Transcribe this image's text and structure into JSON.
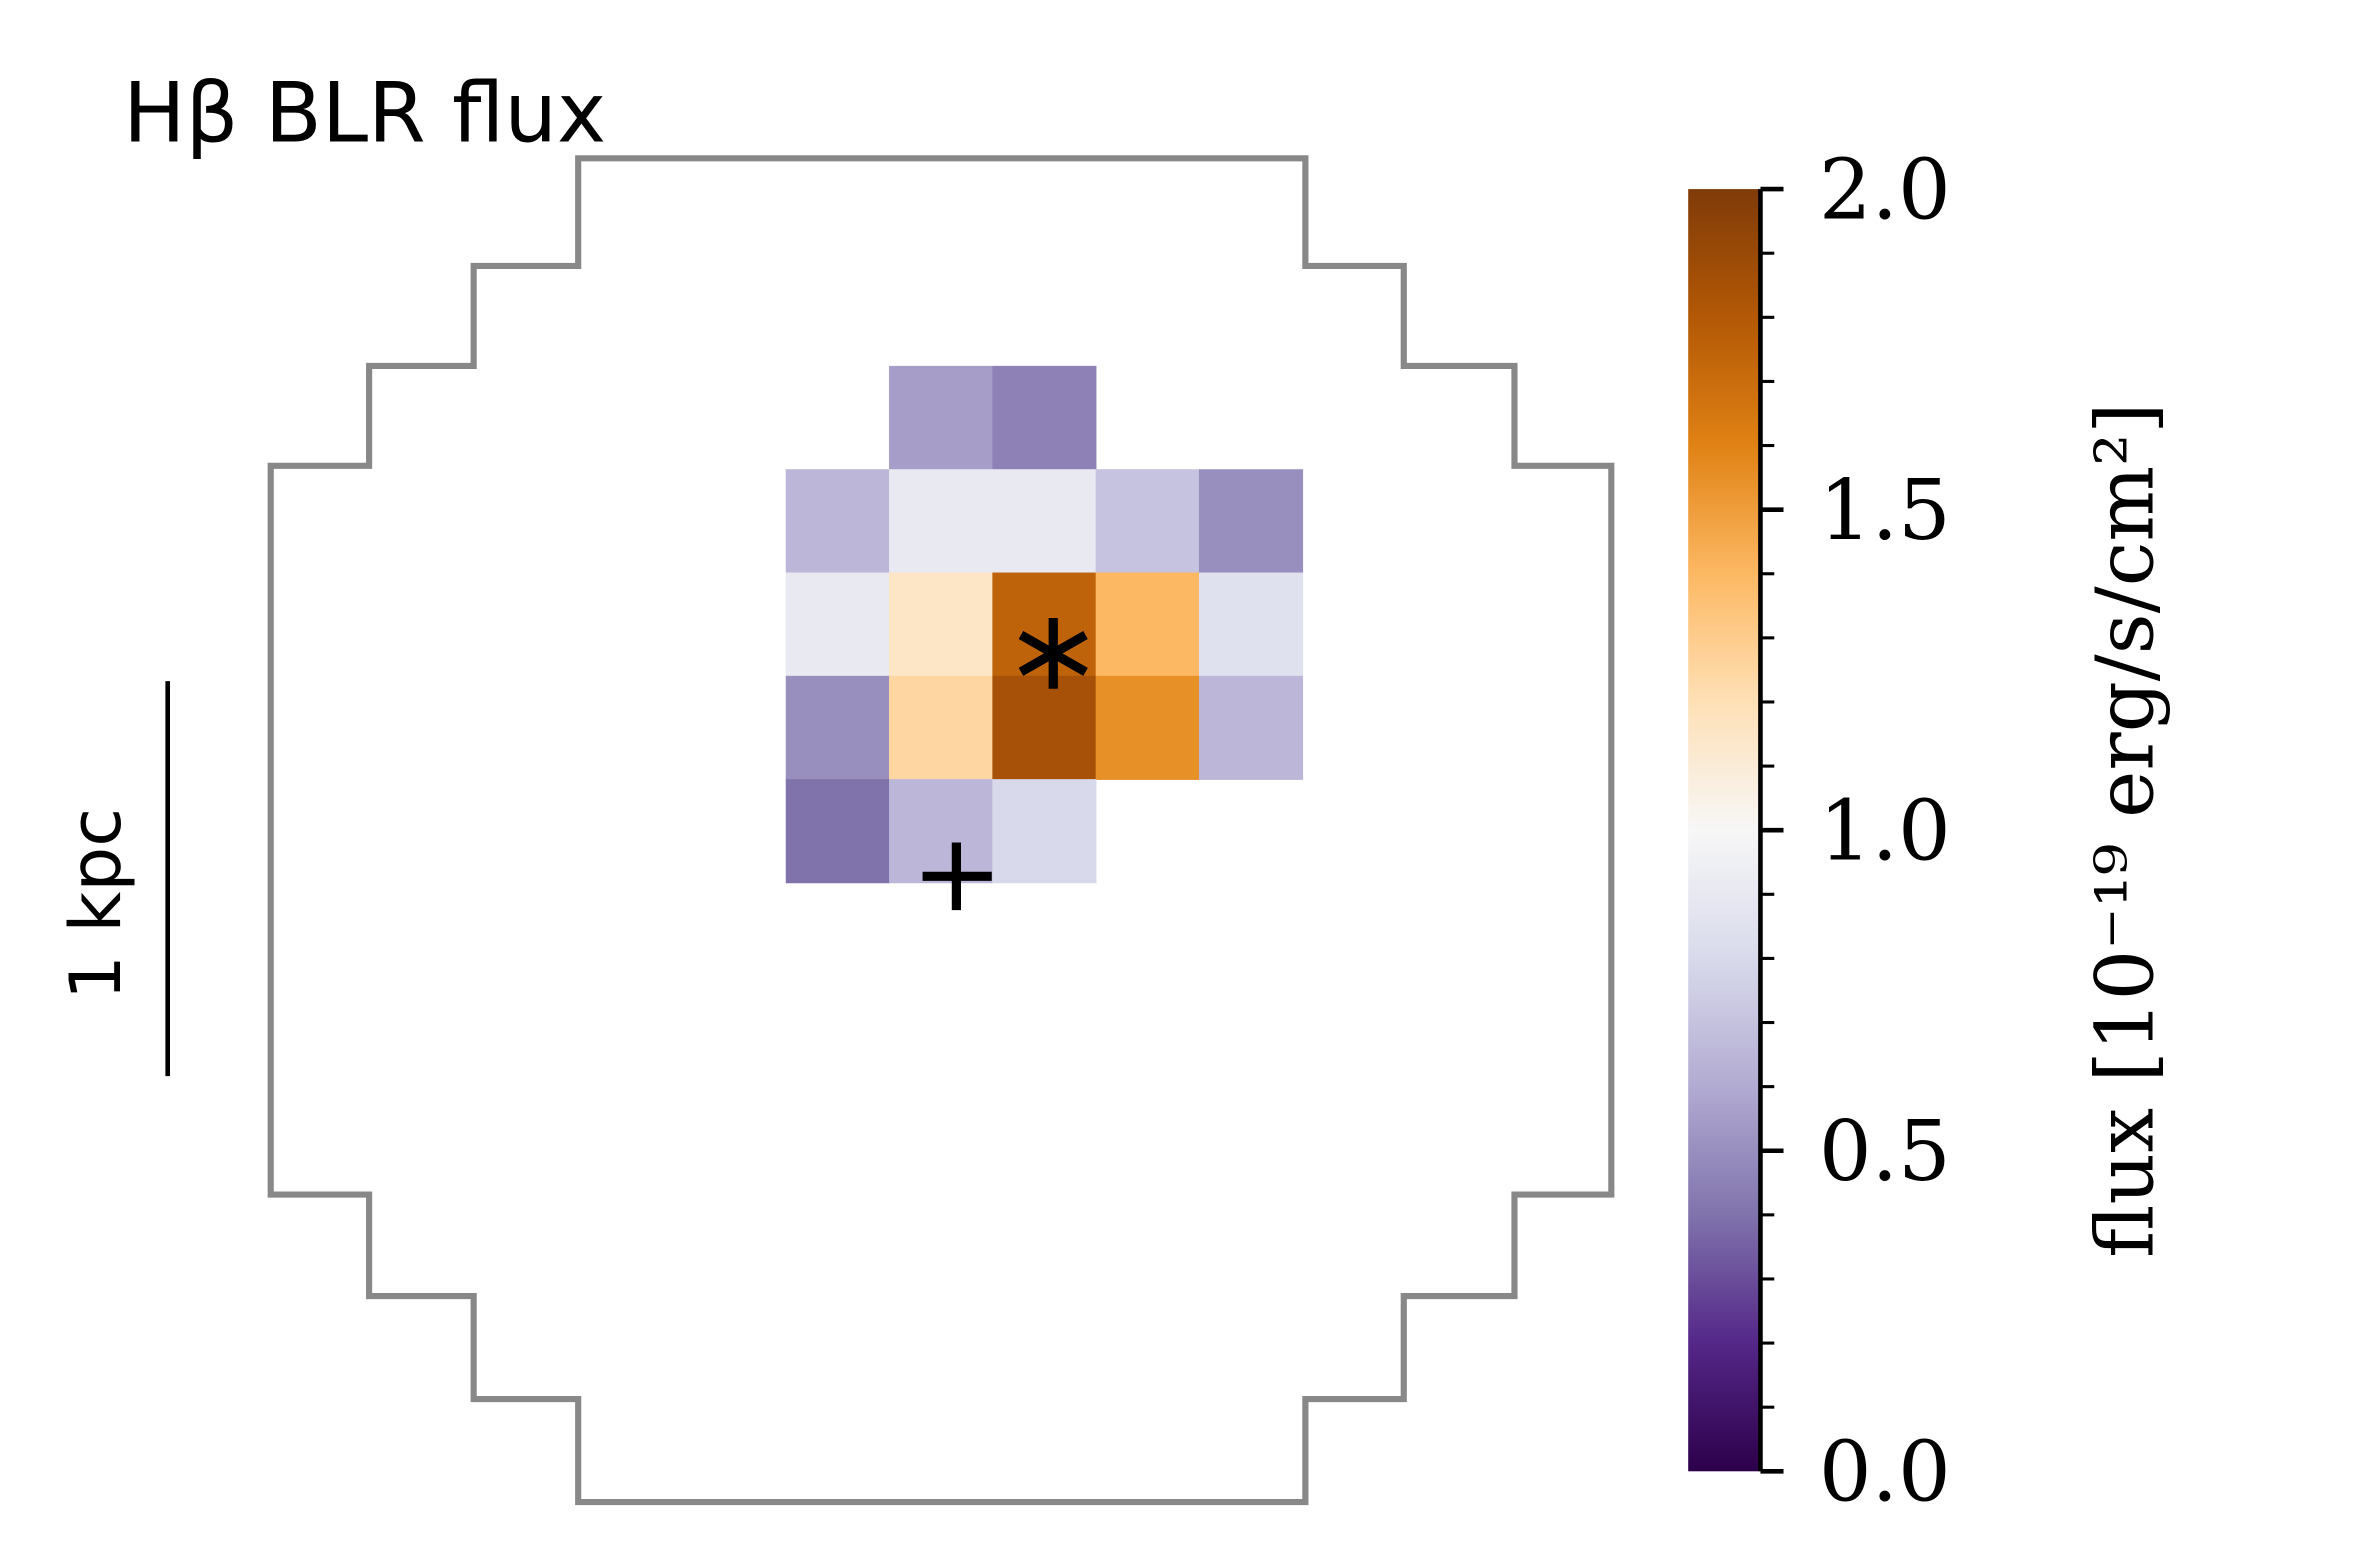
{
  "chart_data": {
    "type": "heatmap",
    "title": "Hβ BLR flux",
    "z": [
      [
        null,
        0.55,
        0.45,
        null,
        null
      ],
      [
        0.65,
        0.9,
        0.9,
        0.7,
        0.5
      ],
      [
        0.9,
        1.15,
        1.75,
        1.4,
        0.85
      ],
      [
        0.5,
        1.25,
        1.85,
        1.55,
        0.65
      ],
      [
        0.4,
        0.65,
        0.8,
        null,
        null
      ]
    ],
    "colormap": "PuOr_r",
    "clim": [
      0,
      2
    ],
    "cticks": [
      {
        "value": 0,
        "label": "0.0"
      },
      {
        "value": 0.5,
        "label": "0.5"
      },
      {
        "value": 1,
        "label": "1.0"
      },
      {
        "value": 1.5,
        "label": "1.5"
      },
      {
        "value": 2,
        "label": "2.0"
      }
    ],
    "minor_cticks": [
      0.1,
      0.2,
      0.3,
      0.4,
      0.6,
      0.7,
      0.8,
      0.9,
      1.1,
      1.2,
      1.3,
      1.4,
      1.6,
      1.7,
      1.8,
      1.9
    ],
    "colorbar_label": "flux [10⁻¹⁹ erg/s/cm²]",
    "scale_label": "1 kpc"
  }
}
